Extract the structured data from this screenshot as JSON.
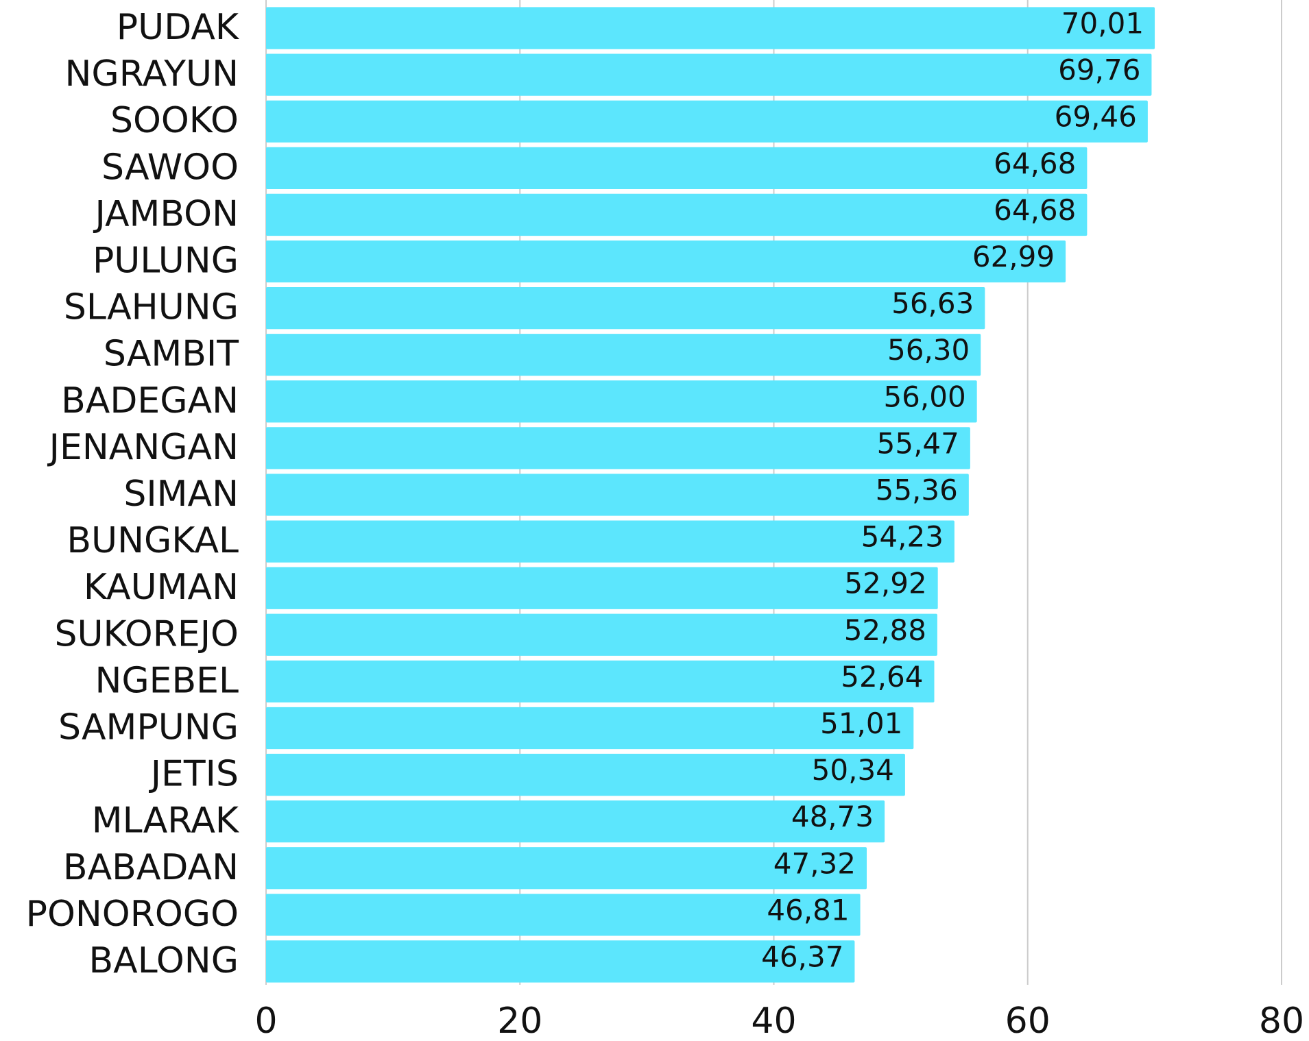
{
  "chart_data": {
    "type": "hbar",
    "categories": [
      "PUDAK",
      "NGRAYUN",
      "SOOKO",
      "SAWOO",
      "JAMBON",
      "PULUNG",
      "SLAHUNG",
      "SAMBIT",
      "BADEGAN",
      "JENANGAN",
      "SIMAN",
      "BUNGKAL",
      "KAUMAN",
      "SUKOREJO",
      "NGEBEL",
      "SAMPUNG",
      "JETIS",
      "MLARAK",
      "BABADAN",
      "PONOROGO",
      "BALONG"
    ],
    "values": [
      70.01,
      69.76,
      69.46,
      64.68,
      64.68,
      62.99,
      56.63,
      56.3,
      56.0,
      55.47,
      55.36,
      54.23,
      52.92,
      52.88,
      52.64,
      51.01,
      50.34,
      48.73,
      47.32,
      46.81,
      46.37
    ],
    "value_labels": [
      "70,01",
      "69,76",
      "69,46",
      "64,68",
      "64,68",
      "62,99",
      "56,63",
      "56,30",
      "56,00",
      "55,47",
      "55,36",
      "54,23",
      "52,92",
      "52,88",
      "52,64",
      "51,01",
      "50,34",
      "48,73",
      "47,32",
      "46,81",
      "46,37"
    ],
    "color": "#5ce6fd",
    "xlim": [
      0,
      80
    ],
    "xticks": [
      0,
      20,
      40,
      60,
      80
    ],
    "grid": true
  }
}
